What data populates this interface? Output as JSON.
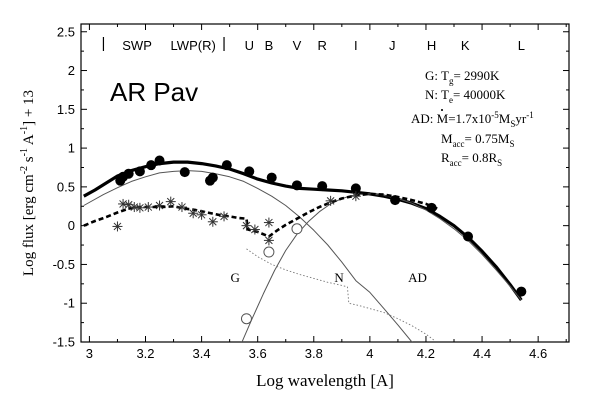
{
  "chart_data": {
    "type": "scatter",
    "xlim": [
      2.97,
      4.71
    ],
    "ylim": [
      -1.5,
      2.6
    ],
    "xticks": [
      "3",
      "3.2",
      "3.4",
      "3.6",
      "3.8",
      "4",
      "4.2",
      "4.4",
      "4.6"
    ],
    "xtick_values": [
      3.0,
      3.2,
      3.4,
      3.6,
      3.8,
      4.0,
      4.2,
      4.4,
      4.6
    ],
    "yticks": [
      "-1.5",
      "-1",
      "-0.5",
      "0",
      "0.5",
      "1",
      "1.5",
      "2",
      "2.5"
    ],
    "ytick_values": [
      -1.5,
      -1.0,
      -0.5,
      0.0,
      0.5,
      1.0,
      1.5,
      2.0,
      2.5
    ],
    "xlabel": "Log wavelength [A]",
    "ylabel_parts": {
      "main": "Log flux [erg cm",
      "e1": "-2",
      "m2": " s",
      "e2": "-1",
      "m3": " A",
      "e3": "-1",
      "end": "] + 13"
    },
    "star_name": "AR Pav",
    "bands": [
      {
        "label": "SWP",
        "x": 3.17
      },
      {
        "label": "LWP(R)",
        "x": 3.37
      },
      {
        "label": "U",
        "x": 3.57
      },
      {
        "label": "B",
        "x": 3.64
      },
      {
        "label": "V",
        "x": 3.74
      },
      {
        "label": "R",
        "x": 3.83
      },
      {
        "label": "I",
        "x": 3.95
      },
      {
        "label": "J",
        "x": 4.08
      },
      {
        "label": "H",
        "x": 4.22
      },
      {
        "label": "K",
        "x": 4.34
      },
      {
        "label": "L",
        "x": 4.54
      }
    ],
    "band_separators": [
      3.05,
      3.48
    ],
    "parameters": {
      "g_prefix": "G: T",
      "g_sub": "g",
      "g_value": "= 2990K",
      "n_prefix": "N: T",
      "n_sub": "e",
      "n_value": "= 40000K",
      "ad_prefix": "AD: ",
      "ad_mdot_symbol": "M",
      "ad_mdot_value": "=1.7x10",
      "ad_mdot_exp": "-5",
      "ad_mdot_unit_1": "M",
      "ad_mdot_unit_sub": "S",
      "ad_mdot_unit_2": "yr",
      "ad_mdot_unit_exp": "-1",
      "macc_prefix": "M",
      "macc_sub": "acc",
      "macc_value": "= 0.75M",
      "macc_unit_sub": "S",
      "racc_prefix": "R",
      "racc_sub": "acc",
      "racc_value": "= 0.8R",
      "racc_unit_sub": "S"
    },
    "curve_labels": [
      {
        "label": "G",
        "x": 3.52,
        "y": -0.66
      },
      {
        "label": "N",
        "x": 3.89,
        "y": -0.66
      },
      {
        "label": "AD",
        "x": 4.17,
        "y": -0.66
      }
    ],
    "filled_points": [
      [
        3.11,
        0.58
      ],
      [
        3.12,
        0.63
      ],
      [
        3.14,
        0.67
      ],
      [
        3.18,
        0.7
      ],
      [
        3.22,
        0.78
      ],
      [
        3.25,
        0.84
      ],
      [
        3.34,
        0.69
      ],
      [
        3.43,
        0.58
      ],
      [
        3.44,
        0.62
      ],
      [
        3.49,
        0.78
      ],
      [
        3.57,
        0.7
      ],
      [
        3.65,
        0.62
      ],
      [
        3.74,
        0.52
      ],
      [
        3.83,
        0.51
      ],
      [
        3.95,
        0.48
      ],
      [
        4.09,
        0.33
      ],
      [
        4.22,
        0.23
      ],
      [
        4.35,
        -0.14
      ],
      [
        4.54,
        -0.85
      ]
    ],
    "open_points": [
      [
        3.56,
        -1.2
      ],
      [
        3.64,
        -0.34
      ],
      [
        3.74,
        -0.04
      ]
    ],
    "asterisk_points": [
      [
        3.12,
        0.28
      ],
      [
        3.14,
        0.27
      ],
      [
        3.16,
        0.24
      ],
      [
        3.18,
        0.23
      ],
      [
        3.21,
        0.24
      ],
      [
        3.25,
        0.26
      ],
      [
        3.29,
        0.31
      ],
      [
        3.33,
        0.24
      ],
      [
        3.37,
        0.16
      ],
      [
        3.4,
        0.14
      ],
      [
        3.44,
        0.05
      ],
      [
        3.48,
        0.12
      ],
      [
        3.56,
        0.0
      ],
      [
        3.59,
        -0.05
      ],
      [
        3.64,
        0.04
      ],
      [
        3.64,
        -0.19
      ],
      [
        3.86,
        0.32
      ],
      [
        3.95,
        0.38
      ],
      [
        3.1,
        -0.01
      ]
    ],
    "series": [
      {
        "style": "thick-solid",
        "x": [
          2.98,
          3.02,
          3.06,
          3.1,
          3.15,
          3.2,
          3.25,
          3.3,
          3.35,
          3.4,
          3.45,
          3.5,
          3.55,
          3.6,
          3.65,
          3.7,
          3.75,
          3.8,
          3.85,
          3.9,
          3.95,
          4.0,
          4.05,
          4.1,
          4.15,
          4.2,
          4.25,
          4.3,
          4.35,
          4.4,
          4.45,
          4.5,
          4.54
        ],
        "y": [
          0.38,
          0.46,
          0.55,
          0.64,
          0.71,
          0.76,
          0.8,
          0.82,
          0.82,
          0.8,
          0.77,
          0.73,
          0.67,
          0.6,
          0.55,
          0.51,
          0.48,
          0.47,
          0.46,
          0.45,
          0.43,
          0.41,
          0.38,
          0.34,
          0.29,
          0.22,
          0.12,
          0.0,
          -0.15,
          -0.33,
          -0.53,
          -0.76,
          -0.96
        ]
      },
      {
        "style": "thin-solid-G",
        "x": [
          2.98,
          3.05,
          3.1,
          3.15,
          3.2,
          3.25,
          3.3,
          3.35,
          3.4,
          3.45,
          3.5,
          3.55,
          3.6,
          3.65,
          3.7,
          3.75,
          3.8,
          3.85,
          3.9,
          3.95,
          4.0,
          4.05,
          4.1,
          4.15,
          4.19
        ],
        "y": [
          0.26,
          0.4,
          0.49,
          0.57,
          0.63,
          0.68,
          0.7,
          0.71,
          0.7,
          0.67,
          0.63,
          0.57,
          0.48,
          0.38,
          0.26,
          0.11,
          -0.06,
          -0.25,
          -0.47,
          -0.71,
          -0.86,
          -1.07,
          -1.28,
          -1.5,
          -1.7
        ]
      },
      {
        "style": "thin-solid-AD",
        "x": [
          3.52,
          3.55,
          3.58,
          3.62,
          3.66,
          3.7,
          3.74,
          3.78,
          3.82,
          3.86,
          3.9,
          3.95,
          4.0,
          4.05,
          4.1,
          4.15,
          4.2,
          4.25,
          4.3,
          4.35,
          4.4,
          4.45,
          4.5,
          4.54
        ],
        "y": [
          -1.7,
          -1.45,
          -1.2,
          -0.88,
          -0.58,
          -0.32,
          -0.11,
          0.05,
          0.18,
          0.28,
          0.35,
          0.4,
          0.41,
          0.39,
          0.35,
          0.29,
          0.2,
          0.09,
          -0.04,
          -0.19,
          -0.37,
          -0.57,
          -0.78,
          -0.96
        ]
      },
      {
        "style": "dashed",
        "x": [
          2.98,
          3.02,
          3.06,
          3.1,
          3.14,
          3.18,
          3.22,
          3.26,
          3.3,
          3.34,
          3.38,
          3.42,
          3.46,
          3.5,
          3.53,
          3.56,
          3.565,
          3.6,
          3.64,
          3.67,
          3.7,
          3.74,
          3.78,
          3.82,
          3.86,
          3.9,
          3.95,
          4.0,
          4.05,
          4.1,
          4.15,
          4.2,
          4.24
        ],
        "y": [
          0.0,
          0.06,
          0.11,
          0.17,
          0.22,
          0.24,
          0.24,
          0.24,
          0.25,
          0.22,
          0.2,
          0.17,
          0.14,
          0.12,
          0.1,
          0.09,
          -0.05,
          -0.08,
          -0.14,
          -0.06,
          0.01,
          0.09,
          0.17,
          0.24,
          0.3,
          0.35,
          0.39,
          0.41,
          0.4,
          0.37,
          0.33,
          0.28,
          0.22
        ]
      },
      {
        "style": "dotted-N",
        "x": [
          3.56,
          3.6,
          3.65,
          3.7,
          3.75,
          3.8,
          3.85,
          3.9,
          3.92,
          3.925,
          3.96,
          4.0,
          4.05,
          4.1,
          4.15,
          4.2,
          4.23
        ],
        "y": [
          -0.3,
          -0.4,
          -0.5,
          -0.57,
          -0.63,
          -0.68,
          -0.73,
          -0.77,
          -0.79,
          -1.0,
          -1.03,
          -1.07,
          -1.12,
          -1.2,
          -1.29,
          -1.4,
          -1.48
        ]
      }
    ]
  }
}
